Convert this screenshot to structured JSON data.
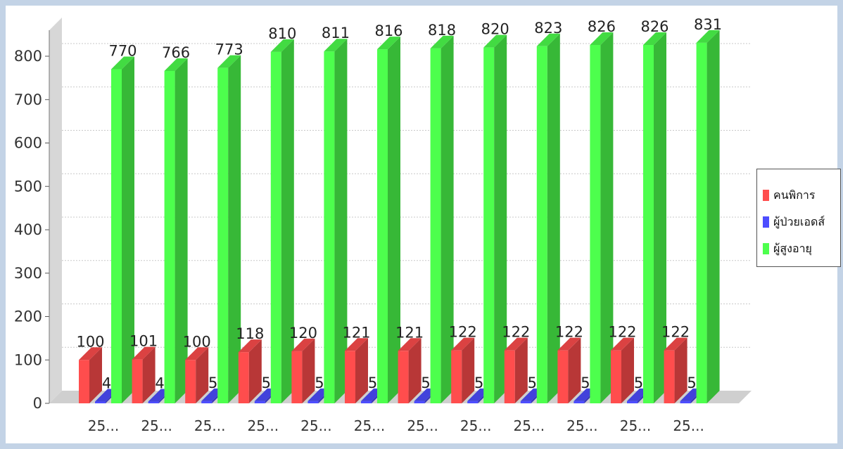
{
  "chart_data": {
    "type": "bar",
    "title": "",
    "xlabel": "",
    "ylabel": "",
    "ylim": [
      0,
      800
    ],
    "yticks": [
      0,
      100,
      200,
      300,
      400,
      500,
      600,
      700,
      800
    ],
    "categories": [
      "25...",
      "25...",
      "25...",
      "25...",
      "25...",
      "25...",
      "25...",
      "25...",
      "25...",
      "25...",
      "25...",
      "25..."
    ],
    "series": [
      {
        "name": "คนพิการ",
        "color": "#ff4d4d",
        "values": [
          100,
          101,
          100,
          118,
          120,
          121,
          121,
          122,
          122,
          122,
          122,
          122
        ]
      },
      {
        "name": "ผู้ป่วยเอดส์",
        "color": "#4d4dff",
        "values": [
          4,
          4,
          5,
          5,
          5,
          5,
          5,
          5,
          5,
          5,
          5,
          5
        ]
      },
      {
        "name": "ผู้สูงอายุ",
        "color": "#4dff4d",
        "values": [
          770,
          766,
          773,
          810,
          811,
          816,
          818,
          820,
          823,
          826,
          826,
          831
        ]
      }
    ],
    "grid": true,
    "legend_position": "right"
  }
}
